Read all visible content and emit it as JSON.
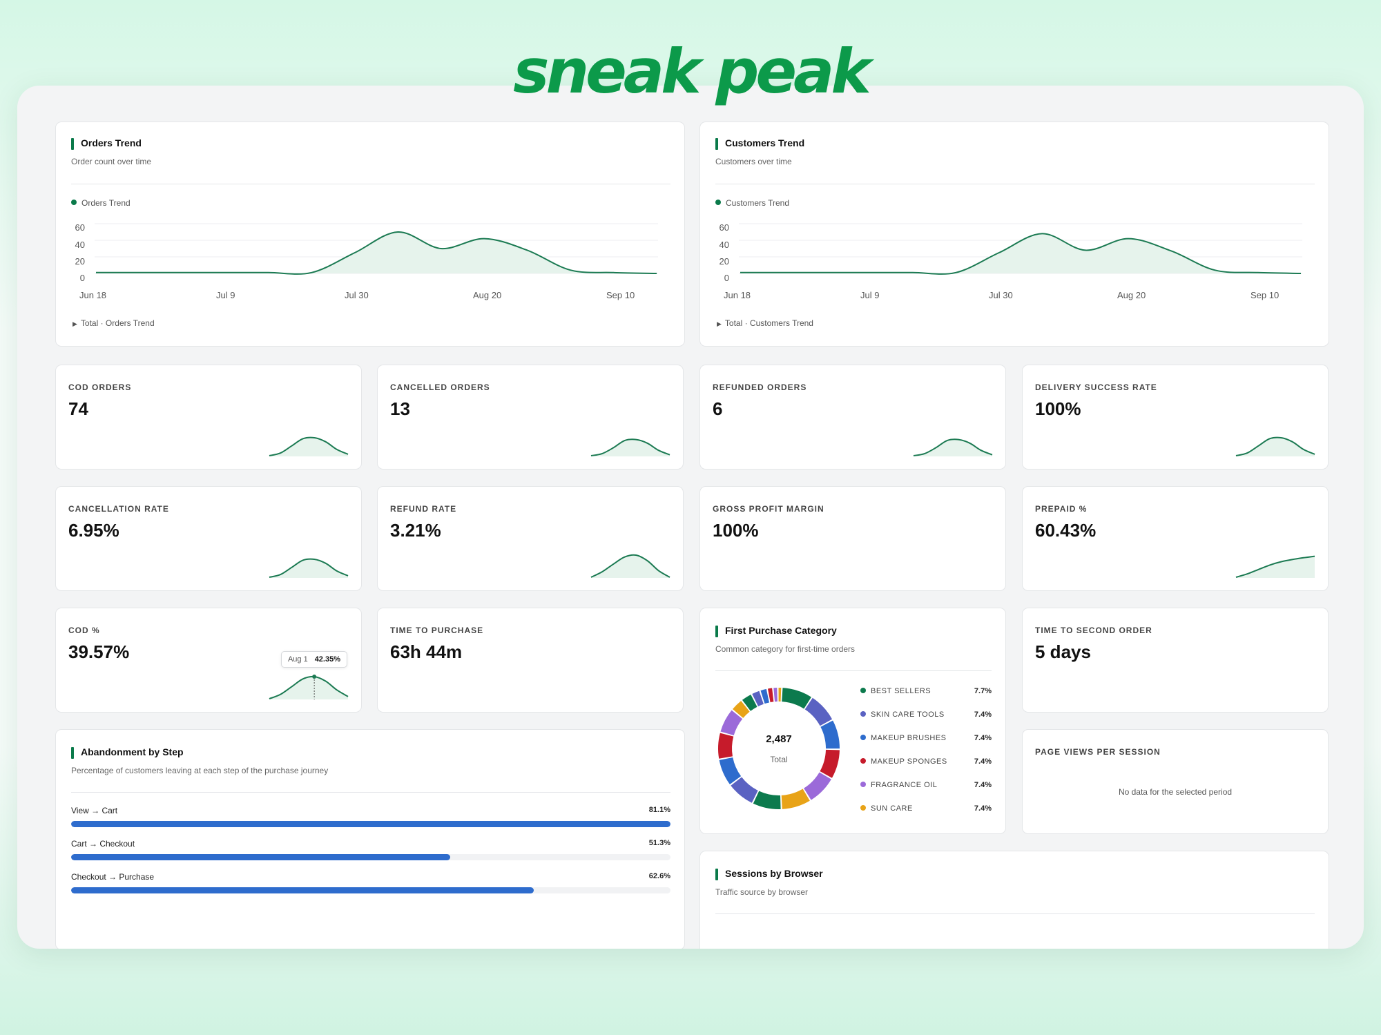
{
  "brand": "sneak peak",
  "colors": {
    "accent": "#0a7a4a",
    "spark_fill": "#e6f3ec",
    "bar": "#2e6ccd",
    "brand": "#0c9a4a"
  },
  "orders_trend": {
    "title": "Orders Trend",
    "subtitle": "Order count over time",
    "legend": "Orders Trend",
    "total_label": "Total · Orders Trend",
    "chart_data": {
      "type": "area",
      "x": [
        "Jun 18",
        "Jun 25",
        "Jul 2",
        "Jul 9",
        "Jul 16",
        "Jul 23",
        "Jul 30",
        "Aug 6",
        "Aug 13",
        "Aug 20",
        "Aug 27",
        "Sep 3",
        "Sep 10",
        "Sep 17"
      ],
      "values": [
        1,
        1,
        1,
        1,
        1,
        1,
        25,
        50,
        30,
        42,
        28,
        4,
        1,
        0
      ],
      "xticks": [
        "Jun 18",
        "Jul 9",
        "Jul 30",
        "Aug 20",
        "Sep 10"
      ],
      "yticks": [
        "0",
        "20",
        "40",
        "60"
      ],
      "ylim": [
        0,
        60
      ]
    }
  },
  "customers_trend": {
    "title": "Customers Trend",
    "subtitle": "Customers over time",
    "legend": "Customers Trend",
    "total_label": "Total · Customers Trend",
    "chart_data": {
      "type": "area",
      "x": [
        "Jun 18",
        "Jun 25",
        "Jul 2",
        "Jul 9",
        "Jul 16",
        "Jul 23",
        "Jul 30",
        "Aug 6",
        "Aug 13",
        "Aug 20",
        "Aug 27",
        "Sep 3",
        "Sep 10",
        "Sep 17"
      ],
      "values": [
        1,
        1,
        1,
        1,
        1,
        1,
        25,
        48,
        28,
        42,
        27,
        4,
        1,
        0
      ],
      "xticks": [
        "Jun 18",
        "Jul 9",
        "Jul 30",
        "Aug 20",
        "Sep 10"
      ],
      "yticks": [
        "0",
        "20",
        "40",
        "60"
      ],
      "ylim": [
        0,
        60
      ]
    }
  },
  "kpis": {
    "cod_orders": {
      "label": "COD ORDERS",
      "value": "74"
    },
    "cancelled_orders": {
      "label": "CANCELLED ORDERS",
      "value": "13"
    },
    "refunded_orders": {
      "label": "REFUNDED ORDERS",
      "value": "6"
    },
    "delivery_success": {
      "label": "DELIVERY SUCCESS RATE",
      "value": "100%"
    },
    "cancellation_rate": {
      "label": "CANCELLATION RATE",
      "value": "6.95%"
    },
    "refund_rate": {
      "label": "REFUND RATE",
      "value": "3.21%"
    },
    "gross_margin": {
      "label": "GROSS PROFIT MARGIN",
      "value": "100%"
    },
    "prepaid": {
      "label": "PREPAID %",
      "value": "60.43%"
    },
    "cod_pct": {
      "label": "COD %",
      "value": "39.57%",
      "tooltip_date": "Aug 1",
      "tooltip_value": "42.35%"
    },
    "time_to_purchase": {
      "label": "TIME TO PURCHASE",
      "value": "63h 44m"
    },
    "time_to_second": {
      "label": "TIME TO SECOND ORDER",
      "value": "5 days"
    },
    "page_views": {
      "label": "PAGE VIEWS PER SESSION",
      "empty": "No data for the selected period"
    }
  },
  "first_purchase": {
    "title": "First Purchase Category",
    "subtitle": "Common category for first-time orders",
    "total_value": "2,487",
    "total_label": "Total",
    "categories": [
      {
        "name": "BEST SELLERS",
        "value": "7.7%",
        "color": "#0c7a4d"
      },
      {
        "name": "SKIN CARE TOOLS",
        "value": "7.4%",
        "color": "#5a62c2"
      },
      {
        "name": "MAKEUP BRUSHES",
        "value": "7.4%",
        "color": "#2e6ccd"
      },
      {
        "name": "MAKEUP SPONGES",
        "value": "7.4%",
        "color": "#c61b2b"
      },
      {
        "name": "FRAGRANCE OIL",
        "value": "7.4%",
        "color": "#9b6ad9"
      },
      {
        "name": "SUN CARE",
        "value": "7.4%",
        "color": "#e8a317"
      }
    ]
  },
  "abandonment": {
    "title": "Abandonment by Step",
    "subtitle": "Percentage of customers leaving at each step of the purchase journey",
    "steps": [
      {
        "label": "View → Cart",
        "value": "81.1%",
        "pct": 100
      },
      {
        "label": "Cart → Checkout",
        "value": "51.3%",
        "pct": 63.2
      },
      {
        "label": "Checkout → Purchase",
        "value": "62.6%",
        "pct": 77.2
      }
    ]
  },
  "sessions_browser": {
    "title": "Sessions by Browser",
    "subtitle": "Traffic source by browser"
  }
}
